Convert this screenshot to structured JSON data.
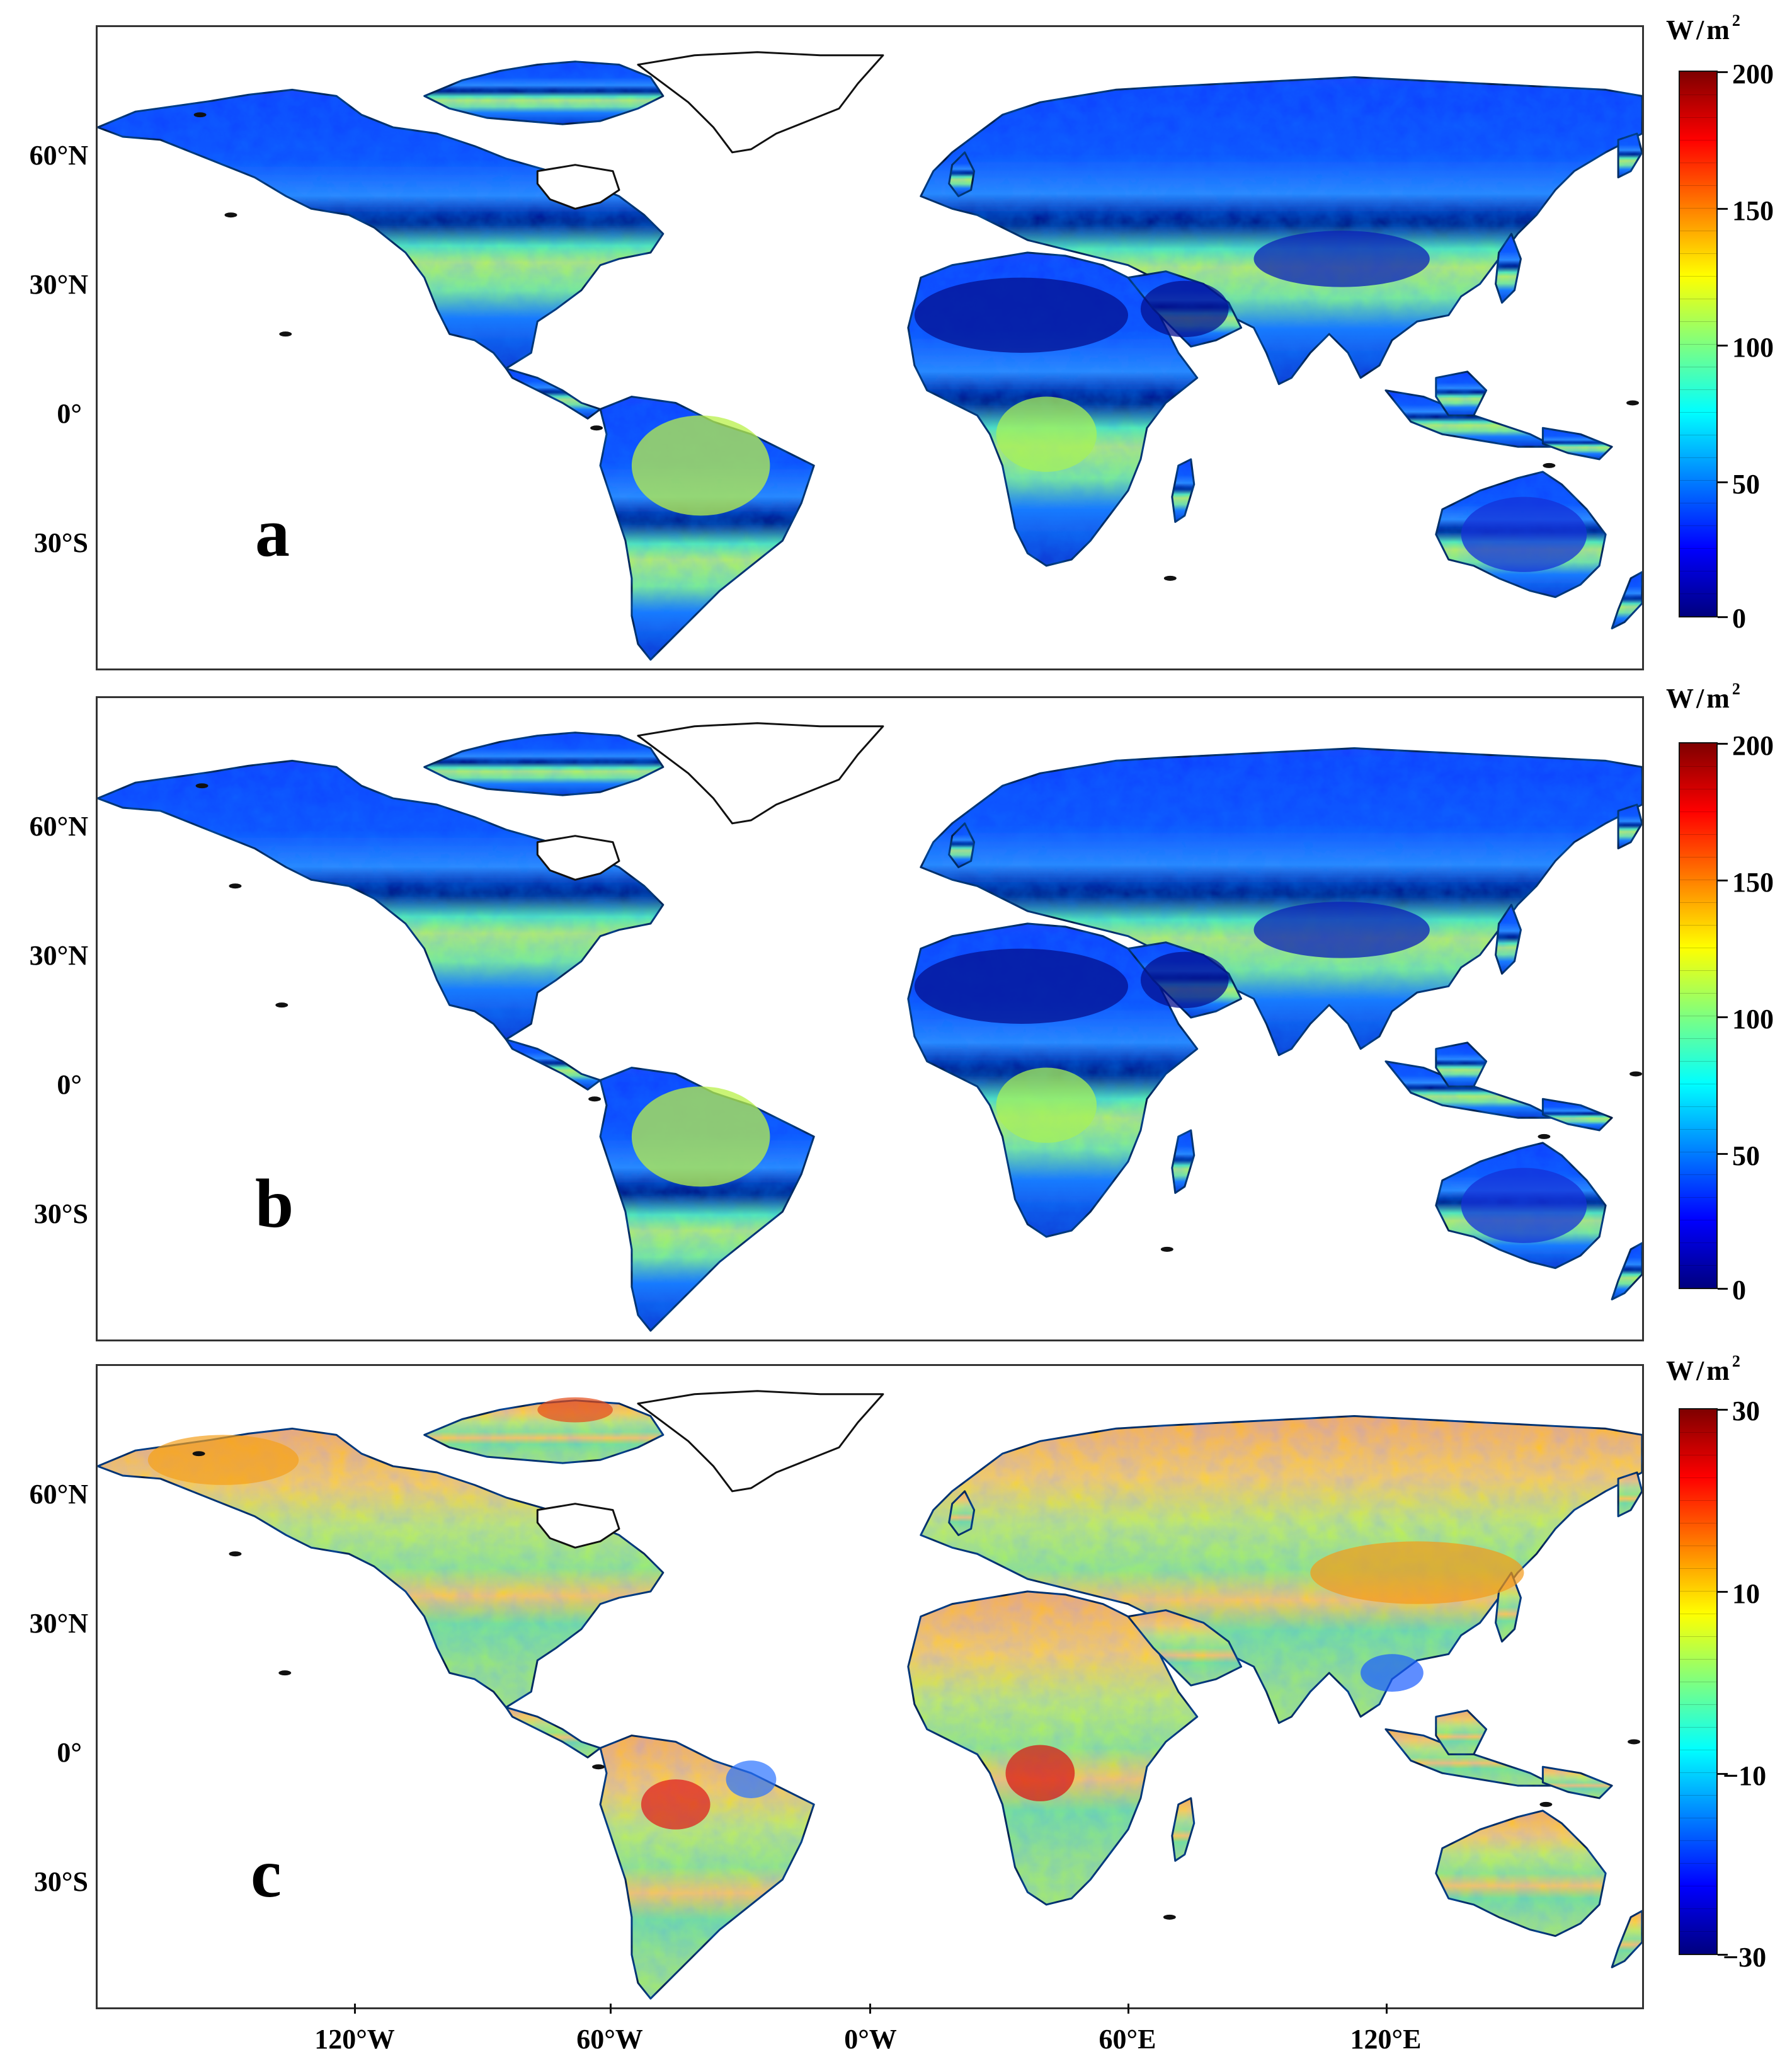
{
  "figure": {
    "panels": [
      {
        "letter": "a",
        "unit": "W/m",
        "unit_exp": "2",
        "colorbar": {
          "ticks": [
            "200",
            "150",
            "100",
            "50",
            "0"
          ],
          "min": 0,
          "max": 200,
          "colormap": "jet"
        }
      },
      {
        "letter": "b",
        "unit": "W/m",
        "unit_exp": "2",
        "colorbar": {
          "ticks": [
            "200",
            "150",
            "100",
            "50",
            "0"
          ],
          "min": 0,
          "max": 200,
          "colormap": "jet"
        }
      },
      {
        "letter": "c",
        "unit": "W/m",
        "unit_exp": "2",
        "colorbar": {
          "ticks": [
            "30",
            "10",
            "−10",
            "−30"
          ],
          "min": -30,
          "max": 30,
          "colormap": "jet"
        }
      }
    ],
    "lat_labels": [
      "60°N",
      "30°N",
      "0°",
      "30°S"
    ],
    "lon_labels": [
      "120°W",
      "60°W",
      "0°W",
      "60°E",
      "120°E"
    ],
    "colors": {
      "jet_stops": [
        "#00007f",
        "#0000ff",
        "#007fff",
        "#00ffff",
        "#7fff7f",
        "#ffff00",
        "#ff7f00",
        "#ff0000",
        "#7f0000"
      ],
      "outline": "#111111"
    }
  }
}
